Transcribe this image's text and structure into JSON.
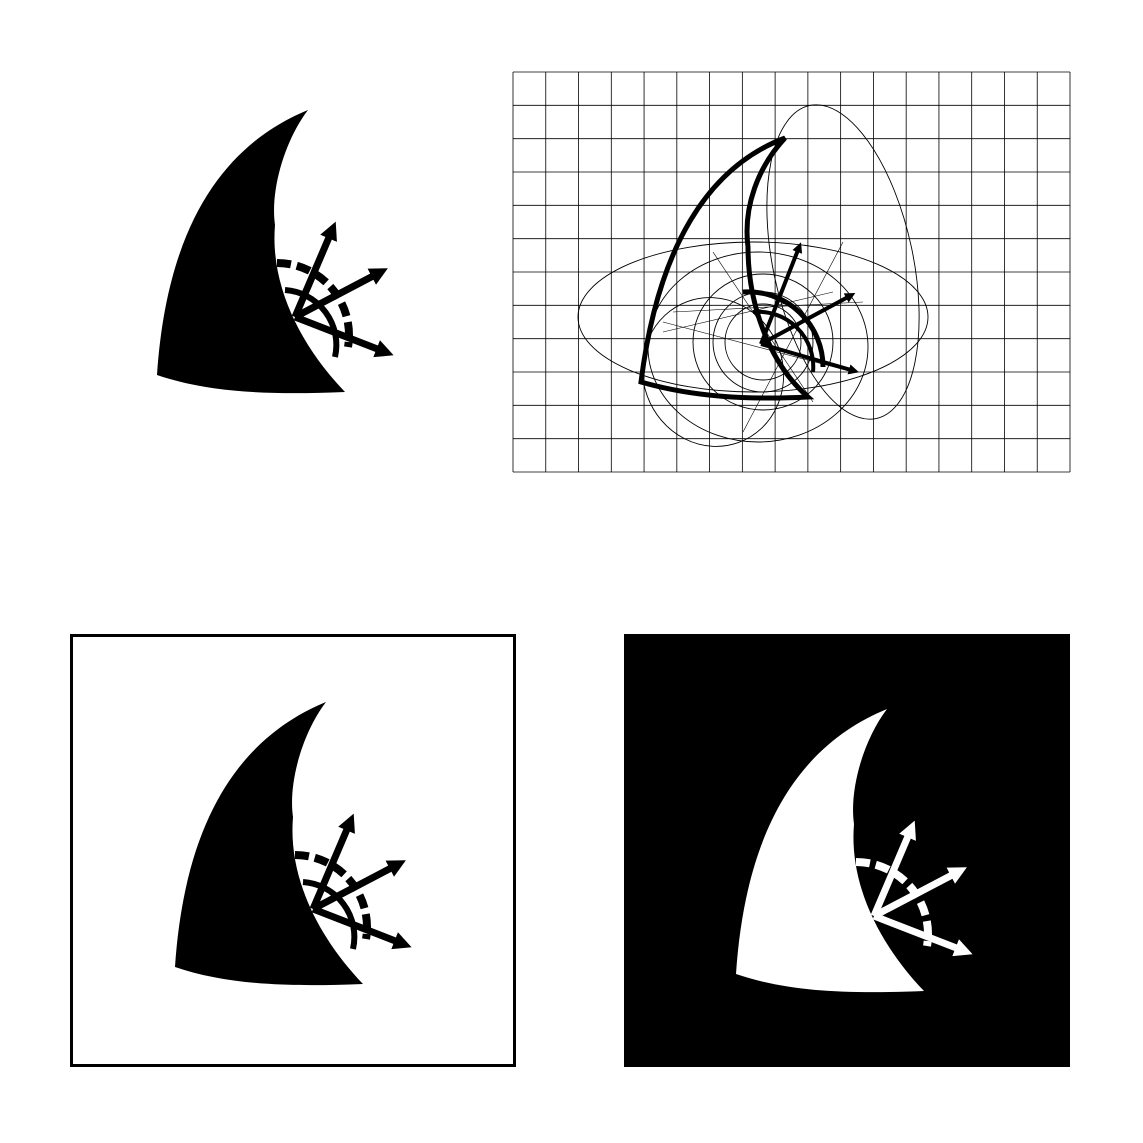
{
  "logo_icon": "sail-and-compass-icon",
  "panels": [
    {
      "name": "logo-black-on-white",
      "foreground": "#000000",
      "background": "#ffffff"
    },
    {
      "name": "logo-construction-grid",
      "grid_color": "#000000",
      "grid_columns": 17,
      "grid_rows": 12
    },
    {
      "name": "logo-in-black-frame",
      "foreground": "#000000",
      "background": "#ffffff",
      "frame": "#000000"
    },
    {
      "name": "logo-inverted",
      "foreground": "#ffffff",
      "background": "#000000"
    }
  ]
}
